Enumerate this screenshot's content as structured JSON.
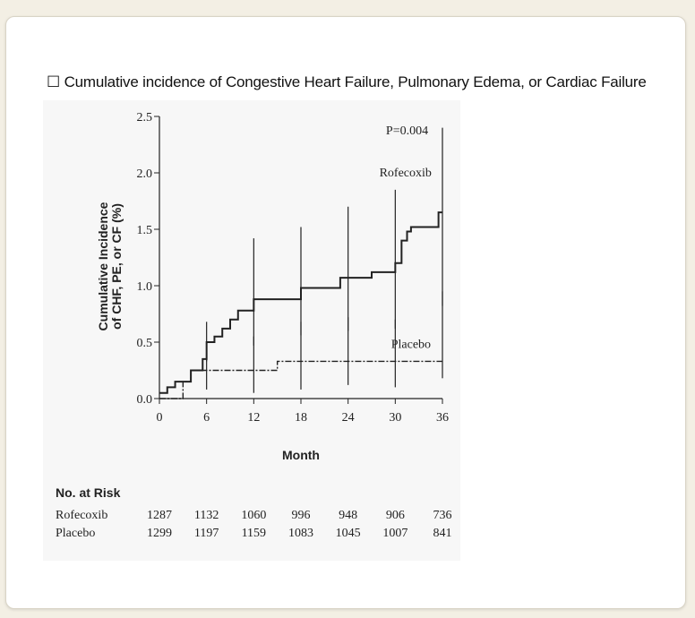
{
  "title": "☐ Cumulative incidence of Congestive Heart Failure, Pulmonary Edema, or Cardiac Failure",
  "chart_data": {
    "type": "line",
    "xlabel": "Month",
    "ylabel_line1": "Cumulative Incidence",
    "ylabel_line2": "of CHF, PE, or CF (%)",
    "xlim": [
      0,
      36
    ],
    "ylim": [
      0,
      2.5
    ],
    "x_ticks": [
      "0",
      "6",
      "12",
      "18",
      "24",
      "30",
      "36"
    ],
    "y_ticks": [
      "0.0",
      "0.5",
      "1.0",
      "1.5",
      "2.0",
      "2.5"
    ],
    "p_value": "P=0.004",
    "series": [
      {
        "name": "Rofecoxib",
        "style": "solid",
        "steps": [
          [
            0,
            0.05
          ],
          [
            1,
            0.1
          ],
          [
            2,
            0.15
          ],
          [
            4,
            0.25
          ],
          [
            5.5,
            0.35
          ],
          [
            6,
            0.5
          ],
          [
            7,
            0.55
          ],
          [
            8,
            0.62
          ],
          [
            9,
            0.7
          ],
          [
            10,
            0.78
          ],
          [
            12,
            0.88
          ],
          [
            18,
            0.98
          ],
          [
            23,
            1.07
          ],
          [
            27,
            1.12
          ],
          [
            30,
            1.2
          ],
          [
            30.8,
            1.4
          ],
          [
            31.5,
            1.48
          ],
          [
            32,
            1.52
          ],
          [
            35.5,
            1.65
          ],
          [
            36,
            1.65
          ]
        ],
        "error_bars": [
          [
            6,
            0.33,
            0.68
          ],
          [
            12,
            0.47,
            1.42
          ],
          [
            18,
            0.56,
            1.52
          ],
          [
            24,
            0.6,
            1.7
          ],
          [
            30,
            0.62,
            1.85
          ],
          [
            36,
            0.82,
            2.4
          ]
        ]
      },
      {
        "name": "Placebo",
        "style": "dash-dot",
        "steps": [
          [
            0,
            0.0
          ],
          [
            3,
            0.15
          ],
          [
            4,
            0.25
          ],
          [
            15,
            0.33
          ],
          [
            36,
            0.33
          ]
        ],
        "error_bars": [
          [
            6,
            0.08,
            0.45
          ],
          [
            12,
            0.05,
            0.55
          ],
          [
            18,
            0.08,
            0.68
          ],
          [
            24,
            0.12,
            0.72
          ],
          [
            30,
            0.1,
            0.7
          ],
          [
            36,
            0.18,
            0.95
          ]
        ]
      }
    ],
    "risk_table": {
      "title": "No. at Risk",
      "rows": [
        {
          "label": "Rofecoxib",
          "values": [
            "1287",
            "1132",
            "1060",
            "996",
            "948",
            "906",
            "736"
          ]
        },
        {
          "label": "Placebo",
          "values": [
            "1299",
            "1197",
            "1159",
            "1083",
            "1045",
            "1007",
            "841"
          ]
        }
      ]
    }
  }
}
